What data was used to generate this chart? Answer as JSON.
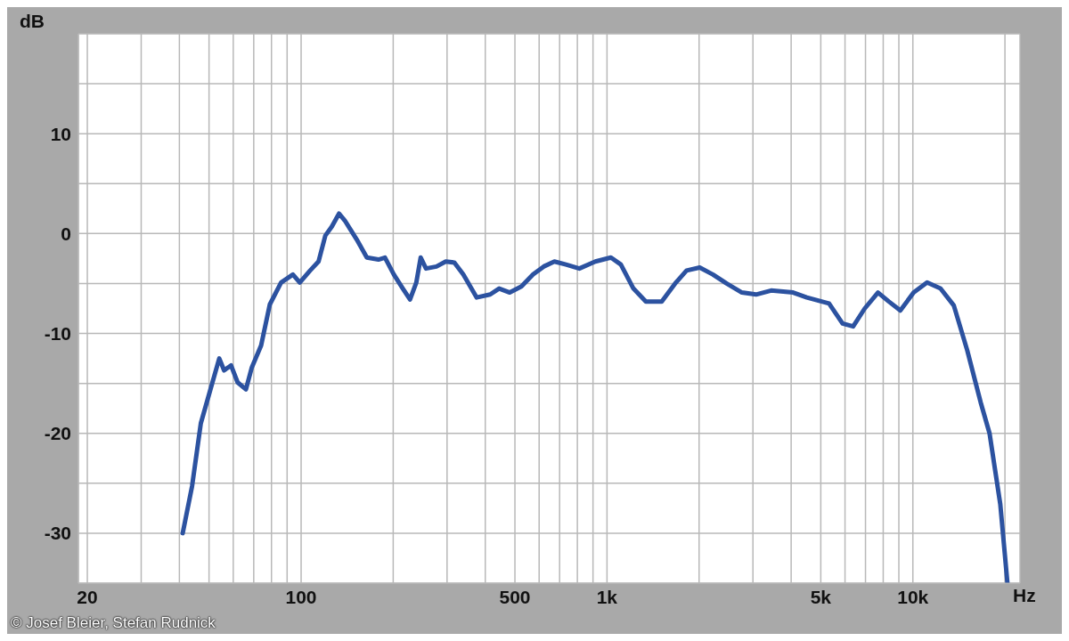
{
  "chart_data": {
    "type": "line",
    "xlabel": "Hz",
    "ylabel": "dB",
    "annotations": [
      "© Josef Bleier, Stefan Rudnick"
    ],
    "log": "x",
    "grid": true,
    "marker": "none",
    "line_style": "solid",
    "xlim": [
      18.7,
      22400
    ],
    "ylim": [
      -35,
      20
    ],
    "xticks": [
      20,
      {
        "value": 30,
        "label": null
      },
      {
        "value": 40,
        "label": null
      },
      {
        "value": 50,
        "label": null
      },
      {
        "value": 60,
        "label": null
      },
      {
        "value": 70,
        "label": null
      },
      {
        "value": 80,
        "label": null
      },
      {
        "value": 90,
        "label": null
      },
      100,
      {
        "value": 200,
        "label": null
      },
      {
        "value": 300,
        "label": null
      },
      {
        "value": 400,
        "label": null
      },
      500,
      {
        "value": 600,
        "label": null
      },
      {
        "value": 700,
        "label": null
      },
      {
        "value": 800,
        "label": null
      },
      {
        "value": 900,
        "label": null
      },
      {
        "value": 1000,
        "label": "1k"
      },
      {
        "value": 2000,
        "label": null
      },
      {
        "value": 3000,
        "label": null
      },
      {
        "value": 4000,
        "label": null
      },
      {
        "value": 5000,
        "label": "5k"
      },
      {
        "value": 6000,
        "label": null
      },
      {
        "value": 7000,
        "label": null
      },
      {
        "value": 8000,
        "label": null
      },
      {
        "value": 9000,
        "label": null
      },
      {
        "value": 10000,
        "label": "10k"
      },
      {
        "value": 20000,
        "label": null
      }
    ],
    "yticks": [
      {
        "value": 20,
        "label": null
      },
      {
        "value": 15,
        "label": null
      },
      10,
      {
        "value": 5,
        "label": null
      },
      0,
      {
        "value": -5,
        "label": null
      },
      -10,
      {
        "value": -15,
        "label": null
      },
      -20,
      {
        "value": -25,
        "label": null
      },
      -30,
      {
        "value": -35,
        "label": null
      }
    ],
    "x": [
      41,
      44,
      47,
      50,
      54,
      56,
      59,
      62,
      66,
      69,
      74,
      79,
      86,
      94,
      99,
      107,
      114,
      120,
      126,
      133,
      139,
      152,
      164,
      179,
      188,
      201,
      215,
      227,
      238,
      246,
      256,
      277,
      297,
      317,
      339,
      375,
      415,
      444,
      481,
      525,
      573,
      621,
      673,
      734,
      812,
      916,
      1030,
      1110,
      1220,
      1340,
      1510,
      1670,
      1820,
      2010,
      2220,
      2460,
      2760,
      3070,
      3440,
      4060,
      4500,
      5320,
      5890,
      6380,
      6960,
      7690,
      8340,
      9100,
      10060,
      11130,
      12310,
      13610,
      15060,
      16660,
      17810,
      19310,
      20380
    ],
    "series": [
      {
        "color": "#2c52a0",
        "values": [
          -30,
          -25.3,
          -19,
          -16.1,
          -12.5,
          -13.7,
          -13.2,
          -14.9,
          -15.6,
          -13.4,
          -11.2,
          -7.1,
          -4.9,
          -4.1,
          -4.9,
          -3.7,
          -2.8,
          -0.2,
          0.7,
          2,
          1.3,
          -0.6,
          -2.4,
          -2.6,
          -2.4,
          -4.1,
          -5.5,
          -6.6,
          -4.9,
          -2.4,
          -3.5,
          -3.3,
          -2.8,
          -2.9,
          -4.1,
          -6.4,
          -6.1,
          -5.5,
          -5.9,
          -5.3,
          -4.1,
          -3.3,
          -2.8,
          -3.1,
          -3.5,
          -2.8,
          -2.4,
          -3.1,
          -5.5,
          -6.8,
          -6.8,
          -5,
          -3.7,
          -3.4,
          -4.1,
          -5,
          -5.9,
          -6.1,
          -5.7,
          -5.9,
          -6.4,
          -7,
          -9,
          -9.3,
          -7.5,
          -5.9,
          -6.8,
          -7.7,
          -5.9,
          -4.9,
          -5.5,
          -7.2,
          -11.7,
          -16.9,
          -20,
          -27.1,
          -35
        ]
      }
    ]
  }
}
